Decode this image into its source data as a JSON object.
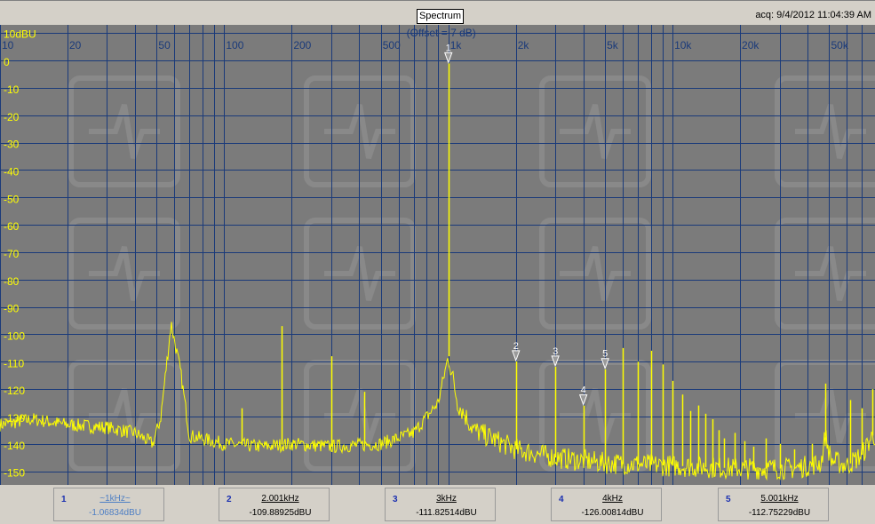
{
  "header": {
    "title": "Spectrum",
    "acquired": "acq: 9/4/2012 11:04:39 AM"
  },
  "chart_data": {
    "type": "line",
    "title": "Spectrum",
    "offset_label": "(Offset = 7 dB)",
    "unit_label": "10dBU",
    "x_scale": "log",
    "xlim": [
      10,
      80000
    ],
    "ylim": [
      -155,
      13
    ],
    "x_tick_labels": [
      {
        "v": 10,
        "t": "10"
      },
      {
        "v": 20,
        "t": "20"
      },
      {
        "v": 50,
        "t": "50"
      },
      {
        "v": 100,
        "t": "100"
      },
      {
        "v": 200,
        "t": "200"
      },
      {
        "v": 500,
        "t": "500"
      },
      {
        "v": 1000,
        "t": "1k"
      },
      {
        "v": 2000,
        "t": "2k"
      },
      {
        "v": 5000,
        "t": "5k"
      },
      {
        "v": 10000,
        "t": "10k"
      },
      {
        "v": 20000,
        "t": "20k"
      },
      {
        "v": 50000,
        "t": "50k"
      }
    ],
    "y_ticks": [
      0,
      -10,
      -20,
      -30,
      -40,
      -50,
      -60,
      -70,
      -80,
      -90,
      -100,
      -110,
      -120,
      -130,
      -140,
      -150
    ],
    "grid": true,
    "colors": {
      "background": "#7b7b7b",
      "grid": "#1a3a7a",
      "trace": "#ffff00",
      "axis_text": "#ffff00",
      "freq_text": "#1a3a7a"
    },
    "trace_baseline": [
      [
        10,
        -133
      ],
      [
        14,
        -131
      ],
      [
        20,
        -133
      ],
      [
        30,
        -134
      ],
      [
        40,
        -136
      ],
      [
        48,
        -140
      ],
      [
        52,
        -131
      ],
      [
        58,
        -96
      ],
      [
        64,
        -114
      ],
      [
        70,
        -137
      ],
      [
        100,
        -140
      ],
      [
        150,
        -141
      ],
      [
        200,
        -140
      ],
      [
        300,
        -141
      ],
      [
        500,
        -140
      ],
      [
        700,
        -136
      ],
      [
        900,
        -125
      ],
      [
        1000,
        -108
      ],
      [
        1100,
        -125
      ],
      [
        1300,
        -135
      ],
      [
        2000,
        -142
      ],
      [
        3000,
        -145
      ],
      [
        5000,
        -147
      ],
      [
        10000,
        -148
      ],
      [
        20000,
        -149
      ],
      [
        35000,
        -149
      ],
      [
        46000,
        -147
      ],
      [
        48000,
        -137
      ],
      [
        51000,
        -146
      ],
      [
        60000,
        -148
      ],
      [
        70000,
        -144
      ],
      [
        78000,
        -137
      ]
    ],
    "peaks": [
      {
        "f": 1000,
        "v": -1.06834
      },
      {
        "f": 120,
        "v": -127
      },
      {
        "f": 180,
        "v": -97
      },
      {
        "f": 300,
        "v": -108
      },
      {
        "f": 420,
        "v": -121
      },
      {
        "f": 2001,
        "v": -109.88925
      },
      {
        "f": 3000,
        "v": -111.82514
      },
      {
        "f": 4000,
        "v": -126.00814
      },
      {
        "f": 5001,
        "v": -112.75229
      },
      {
        "f": 6000,
        "v": -105
      },
      {
        "f": 7000,
        "v": -110
      },
      {
        "f": 8000,
        "v": -106
      },
      {
        "f": 9000,
        "v": -111
      },
      {
        "f": 10000,
        "v": -117
      },
      {
        "f": 11000,
        "v": -122
      },
      {
        "f": 12000,
        "v": -128
      },
      {
        "f": 13000,
        "v": -126
      },
      {
        "f": 14000,
        "v": -129
      },
      {
        "f": 15000,
        "v": -131
      },
      {
        "f": 16000,
        "v": -135
      },
      {
        "f": 17000,
        "v": -138
      },
      {
        "f": 19000,
        "v": -136
      },
      {
        "f": 21000,
        "v": -139
      },
      {
        "f": 23000,
        "v": -141
      },
      {
        "f": 26000,
        "v": -138
      },
      {
        "f": 30000,
        "v": -140
      },
      {
        "f": 35000,
        "v": -142
      },
      {
        "f": 42000,
        "v": -140
      },
      {
        "f": 48000,
        "v": -118
      },
      {
        "f": 62000,
        "v": -124
      },
      {
        "f": 70000,
        "v": -127
      },
      {
        "f": 78000,
        "v": -120
      }
    ],
    "markers": [
      {
        "index": "1",
        "f": 1000,
        "v": -1.06834
      },
      {
        "index": "2",
        "f": 2001,
        "v": -109.88925
      },
      {
        "index": "3",
        "f": 3000,
        "v": -111.82514
      },
      {
        "index": "4",
        "f": 4000,
        "v": -126.00814
      },
      {
        "index": "5",
        "f": 5001,
        "v": -112.75229
      }
    ]
  },
  "marker_readouts": [
    {
      "index": "1",
      "freq": "~1kHz~",
      "value": "-1.06834dBU",
      "active": true
    },
    {
      "index": "2",
      "freq": "2.001kHz",
      "value": "-109.88925dBU",
      "active": false
    },
    {
      "index": "3",
      "freq": "3kHz",
      "value": "-111.82514dBU",
      "active": false
    },
    {
      "index": "4",
      "freq": "4kHz",
      "value": "-126.00814dBU",
      "active": false
    },
    {
      "index": "5",
      "freq": "5.001kHz",
      "value": "-112.75229dBU",
      "active": false
    }
  ]
}
